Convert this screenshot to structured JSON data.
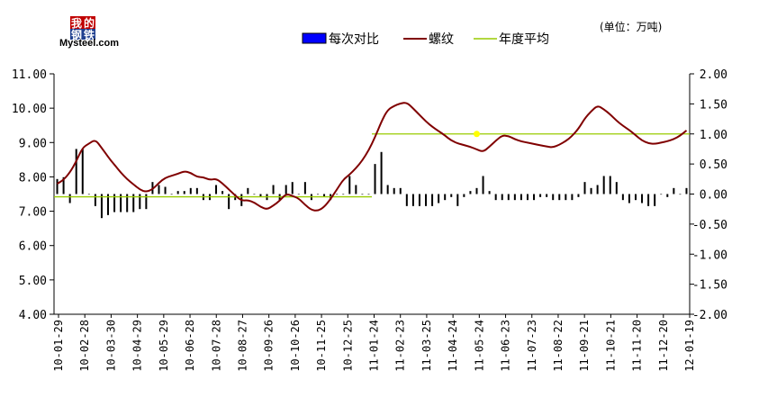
{
  "logo": {
    "chars": [
      "我",
      "的",
      "钢",
      "铁"
    ],
    "text": "Mysteel.com"
  },
  "unit_label": "(单位：万吨)",
  "legend": [
    {
      "key": "diff",
      "label": "每次对比",
      "color": "#0000ff"
    },
    {
      "key": "rebar",
      "label": "螺纹",
      "color": "#800000"
    },
    {
      "key": "avg",
      "label": "年度平均",
      "color": "#99cc00"
    }
  ],
  "chart_data": {
    "type": "line",
    "title": "",
    "xlabel": "",
    "ylabel": "",
    "y_left": {
      "min": 4,
      "max": 11,
      "ticks": [
        "4.00",
        "5.00",
        "6.00",
        "7.00",
        "8.00",
        "9.00",
        "10.00",
        "11.00"
      ]
    },
    "y_right": {
      "min": -2,
      "max": 2,
      "ticks": [
        "-2.00",
        "-1.50",
        "-1.00",
        "-0.50",
        "0.00",
        "0.50",
        "1.00",
        "1.50",
        "2.00"
      ]
    },
    "x_tick_labels": [
      "10-01-29",
      "10-02-28",
      "10-03-30",
      "10-04-29",
      "10-05-29",
      "10-06-28",
      "10-07-28",
      "10-08-27",
      "10-09-26",
      "10-10-26",
      "10-11-25",
      "10-12-25",
      "11-01-24",
      "11-02-23",
      "11-03-25",
      "11-04-24",
      "11-05-24",
      "11-06-23",
      "11-07-23",
      "11-08-22",
      "11-09-21",
      "11-10-21",
      "11-11-20",
      "11-12-20",
      "12-01-19"
    ],
    "n_points": 100,
    "rebar_knots": [
      [
        0,
        7.8
      ],
      [
        2,
        7.95
      ],
      [
        4,
        8.3
      ],
      [
        6,
        8.85
      ],
      [
        8,
        9.0
      ],
      [
        9,
        9.1
      ],
      [
        10,
        8.95
      ],
      [
        12,
        8.6
      ],
      [
        14,
        8.3
      ],
      [
        16,
        8.0
      ],
      [
        18,
        7.8
      ],
      [
        20,
        7.6
      ],
      [
        21,
        7.55
      ],
      [
        22,
        7.6
      ],
      [
        23,
        7.65
      ],
      [
        24,
        7.8
      ],
      [
        26,
        8.0
      ],
      [
        28,
        8.05
      ],
      [
        30,
        8.15
      ],
      [
        31,
        8.2
      ],
      [
        32,
        8.1
      ],
      [
        34,
        7.95
      ],
      [
        35,
        8.0
      ],
      [
        36,
        7.9
      ],
      [
        38,
        7.95
      ],
      [
        40,
        7.75
      ],
      [
        42,
        7.5
      ],
      [
        44,
        7.3
      ],
      [
        45,
        7.3
      ],
      [
        46,
        7.35
      ],
      [
        47,
        7.25
      ],
      [
        48,
        7.15
      ],
      [
        50,
        7.05
      ],
      [
        52,
        7.2
      ],
      [
        54,
        7.4
      ],
      [
        55,
        7.6
      ],
      [
        56,
        7.45
      ],
      [
        57,
        7.4
      ],
      [
        58,
        7.35
      ],
      [
        60,
        7.05
      ],
      [
        62,
        7.0
      ],
      [
        64,
        7.15
      ],
      [
        66,
        7.5
      ],
      [
        68,
        7.9
      ],
      [
        70,
        8.1
      ],
      [
        72,
        8.35
      ],
      [
        74,
        8.7
      ],
      [
        75,
        9.0
      ],
      [
        76,
        9.2
      ],
      [
        77,
        9.5
      ],
      [
        78,
        9.9
      ],
      [
        80,
        10.05
      ],
      [
        82,
        10.15
      ],
      [
        83,
        10.2
      ],
      [
        84,
        10.1
      ],
      [
        86,
        9.85
      ],
      [
        88,
        9.6
      ],
      [
        90,
        9.4
      ],
      [
        92,
        9.25
      ],
      [
        94,
        9.05
      ],
      [
        96,
        8.95
      ],
      [
        98,
        8.9
      ],
      [
        100,
        8.8
      ],
      [
        101,
        8.7
      ],
      [
        102,
        8.75
      ],
      [
        104,
        9.0
      ],
      [
        106,
        9.2
      ],
      [
        107,
        9.25
      ],
      [
        108,
        9.15
      ],
      [
        110,
        9.05
      ],
      [
        112,
        9.0
      ],
      [
        114,
        8.95
      ],
      [
        116,
        8.9
      ],
      [
        118,
        8.85
      ],
      [
        120,
        8.95
      ],
      [
        122,
        9.1
      ],
      [
        124,
        9.35
      ],
      [
        126,
        9.75
      ],
      [
        128,
        10.0
      ],
      [
        129,
        10.1
      ],
      [
        130,
        10.0
      ],
      [
        132,
        9.8
      ],
      [
        134,
        9.55
      ],
      [
        136,
        9.4
      ],
      [
        138,
        9.2
      ],
      [
        140,
        9.0
      ],
      [
        142,
        8.95
      ],
      [
        144,
        9.0
      ],
      [
        146,
        9.05
      ],
      [
        148,
        9.15
      ],
      [
        150,
        9.35
      ],
      [
        152,
        9.5
      ],
      [
        153,
        9.5
      ]
    ],
    "knot_scale": 0.66,
    "annual_avg": [
      {
        "from_index": 0,
        "to_index": 49,
        "value": 7.42
      },
      {
        "from_index": 50,
        "to_index": 99,
        "value": 9.25
      }
    ],
    "diff_bars": [
      0.25,
      0.28,
      -0.15,
      0.75,
      0.75,
      0.0,
      -0.2,
      -0.4,
      -0.35,
      -0.3,
      -0.3,
      -0.3,
      -0.3,
      -0.25,
      -0.25,
      0.2,
      0.15,
      0.12,
      0.0,
      0.05,
      0.05,
      0.1,
      0.1,
      -0.1,
      -0.1,
      0.15,
      0.05,
      -0.25,
      -0.1,
      -0.2,
      0.1,
      0.0,
      -0.05,
      -0.1,
      0.15,
      -0.1,
      0.15,
      0.2,
      0.0,
      0.2,
      -0.1,
      0.0,
      -0.05,
      -0.1,
      0.0,
      0.0,
      0.3,
      0.15,
      0.0,
      0.0,
      0.5,
      0.7,
      0.15,
      0.1,
      0.1,
      -0.2,
      -0.2,
      -0.2,
      -0.2,
      -0.2,
      -0.15,
      -0.1,
      -0.05,
      -0.2,
      -0.05,
      0.05,
      0.1,
      0.3,
      0.05,
      -0.1,
      -0.1,
      -0.1,
      -0.1,
      -0.1,
      -0.1,
      -0.1,
      -0.05,
      -0.05,
      -0.1,
      -0.1,
      -0.1,
      -0.1,
      -0.05,
      0.2,
      0.1,
      0.15,
      0.3,
      0.3,
      0.2,
      -0.1,
      -0.15,
      -0.1,
      -0.15,
      -0.2,
      -0.2,
      0.0,
      -0.05,
      0.1,
      0.0,
      0.1
    ],
    "highlight": {
      "index": 66,
      "color": "#ffff00"
    }
  }
}
